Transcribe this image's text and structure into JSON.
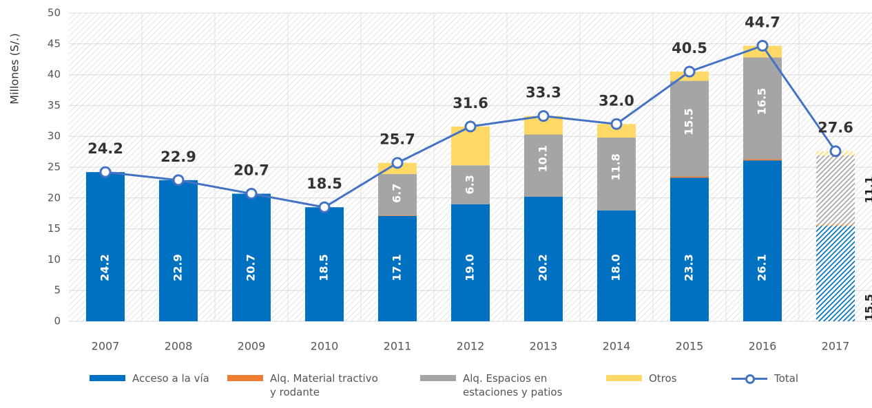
{
  "chart_data": {
    "type": "stacked_bar_line",
    "ylabel": "Millones (S/.)",
    "categories": [
      "2007",
      "2008",
      "2009",
      "2010",
      "2011",
      "2012",
      "2013",
      "2014",
      "2015",
      "2016",
      "2017"
    ],
    "series": [
      {
        "name": "Acceso a la vía",
        "color": "#0070c0",
        "values": [
          24.2,
          22.9,
          20.7,
          18.5,
          17.1,
          19.0,
          20.2,
          18.0,
          23.3,
          26.1,
          15.5
        ],
        "value_labels": [
          "24.2",
          "22.9",
          "20.7",
          "18.5",
          "17.1",
          "19.0",
          "20.2",
          "18.0",
          "23.3",
          "26.1",
          "15.5"
        ]
      },
      {
        "name": "Alq. Material tractivo y rodante",
        "color": "#ed7d31",
        "values": [
          0,
          0,
          0,
          0,
          0.1,
          0,
          0,
          0,
          0.2,
          0.2,
          0.3
        ]
      },
      {
        "name": "Alq. Espacios en estaciones y patios",
        "color": "#a5a5a5",
        "values": [
          0,
          0,
          0,
          0,
          6.7,
          6.3,
          10.1,
          11.8,
          15.5,
          16.5,
          11.1
        ],
        "value_labels": [
          null,
          null,
          null,
          null,
          "6.7",
          "6.3",
          "10.1",
          "11.8",
          "15.5",
          "16.5",
          "11.1"
        ]
      },
      {
        "name": "Otros",
        "color": "#ffd966",
        "values": [
          0,
          0,
          0,
          0,
          1.8,
          6.3,
          3.0,
          2.2,
          1.5,
          1.9,
          0.7
        ]
      },
      {
        "name": "Total",
        "color": "#4472c4",
        "type": "line",
        "values": [
          24.2,
          22.9,
          20.7,
          18.5,
          25.7,
          31.6,
          33.3,
          32.0,
          40.5,
          44.7,
          27.6
        ],
        "value_labels": [
          "24.2",
          "22.9",
          "20.7",
          "18.5",
          "25.7",
          "31.6",
          "33.3",
          "32.0",
          "40.5",
          "44.7",
          "27.6"
        ]
      }
    ],
    "ylim": [
      0,
      50
    ],
    "yticks": [
      0,
      5,
      10,
      15,
      20,
      25,
      30,
      35,
      40,
      45,
      50
    ],
    "grid": true
  }
}
